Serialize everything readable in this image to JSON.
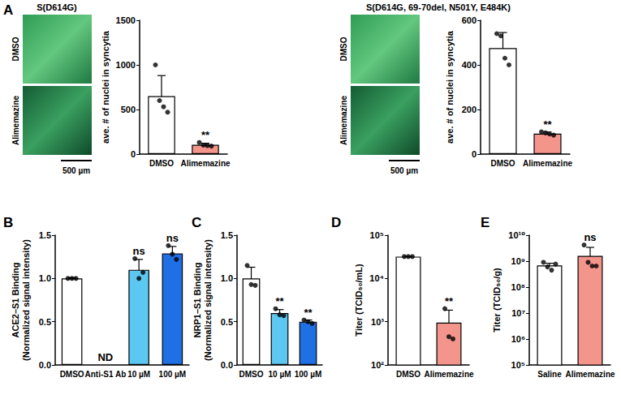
{
  "chart_data": [
    {
      "type": "bar",
      "label": "A",
      "title": "S(D614G)",
      "images": {
        "labels": [
          "DMSO",
          "Alimemazine"
        ],
        "scale_bar": "500 µm"
      },
      "ylabel": "ave. # of nuclei in syncytia",
      "categories": [
        "DMSO",
        "Alimemazine"
      ],
      "values": [
        650,
        104
      ],
      "errors": [
        230,
        18
      ],
      "points": [
        [
          1000,
          600,
          530,
          470
        ],
        [
          130,
          100,
          95,
          90
        ]
      ],
      "colors": [
        "#ffffff",
        "#f4958c"
      ],
      "annotations": [
        null,
        "**"
      ],
      "ylim": [
        0,
        1500
      ],
      "yticks": [
        0,
        500,
        1000,
        1500
      ],
      "grid": false
    },
    {
      "type": "bar",
      "title": "S(D614G, 69-70del, N501Y, E484K)",
      "images": {
        "labels": [
          "DMSO",
          "Alimemazine"
        ],
        "scale_bar": "500 µm"
      },
      "ylabel": "ave. # of nuclei in syncytia",
      "categories": [
        "DMSO",
        "Alimemazine"
      ],
      "values": [
        475,
        92
      ],
      "errors": [
        70,
        7
      ],
      "points": [
        [
          540,
          530,
          430,
          400
        ],
        [
          100,
          95,
          90,
          85
        ]
      ],
      "colors": [
        "#ffffff",
        "#f4958c"
      ],
      "annotations": [
        null,
        "**"
      ],
      "ylim": [
        0,
        600
      ],
      "yticks": [
        0,
        200,
        400,
        600
      ],
      "grid": false
    },
    {
      "type": "bar",
      "label": "B",
      "ylabel": "ACE2–S1 Binding\n(Normalized signal intensity)",
      "categories": [
        "DMSO",
        "Anti-S1 Ab",
        "10 µM",
        "100 µM"
      ],
      "values": [
        1.0,
        null,
        1.1,
        1.29
      ],
      "errors": [
        0.01,
        null,
        0.12,
        0.08
      ],
      "points": [
        [
          1.0,
          1.0,
          1.0
        ],
        [],
        [
          1.23,
          1.0,
          1.07
        ],
        [
          1.38,
          1.28,
          1.22
        ]
      ],
      "colors": [
        "#ffffff",
        "#ffffff",
        "#5cc8f2",
        "#1f6fe5"
      ],
      "annotations": [
        null,
        "ND",
        "ns",
        "ns"
      ],
      "ylim": [
        0,
        1.5
      ],
      "yticks": [
        {
          "value": 0,
          "label": "0.0"
        },
        {
          "value": 0.5,
          "label": "0.5"
        },
        {
          "value": 1,
          "label": "1.0"
        },
        {
          "value": 1.5,
          "label": "1.5"
        }
      ],
      "grid": false
    },
    {
      "type": "bar",
      "label": "C",
      "ylabel": "NRP1–S1 Binding\n(Normalized signal intensity)",
      "categories": [
        "DMSO",
        "10 µM",
        "100 µM"
      ],
      "values": [
        1.0,
        0.6,
        0.5
      ],
      "errors": [
        0.13,
        0.04,
        0.02
      ],
      "points": [
        [
          1.15,
          0.93,
          0.92
        ],
        [
          0.65,
          0.58,
          0.57
        ],
        [
          0.52,
          0.5,
          0.48
        ]
      ],
      "colors": [
        "#ffffff",
        "#5cc8f2",
        "#1f6fe5"
      ],
      "annotations": [
        null,
        "**",
        "**"
      ],
      "ylim": [
        0,
        1.5
      ],
      "yticks": [
        {
          "value": 0,
          "label": "0.0"
        },
        {
          "value": 0.5,
          "label": "0.5"
        },
        {
          "value": 1,
          "label": "1.0"
        },
        {
          "value": 1.5,
          "label": "1.5"
        }
      ],
      "grid": false
    },
    {
      "type": "bar",
      "label": "D",
      "log": "y",
      "ylabel": "Titer (TCID₅₀/mL)",
      "categories": [
        "DMSO",
        "Alimemazine"
      ],
      "values": [
        32000,
        950
      ],
      "errors": [
        0,
        900
      ],
      "points": [
        [
          32000,
          32000,
          32000
        ],
        [
          2000,
          450,
          400
        ]
      ],
      "colors": [
        "#ffffff",
        "#f4958c"
      ],
      "annotations": [
        null,
        "**"
      ],
      "ylim": [
        100,
        100000
      ],
      "yticks": [
        {
          "value": 100,
          "label": "10²"
        },
        {
          "value": 1000,
          "label": "10³"
        },
        {
          "value": 10000,
          "label": "10⁴"
        },
        {
          "value": 100000,
          "label": "10⁵"
        }
      ],
      "grid": false
    },
    {
      "type": "bar",
      "label": "E",
      "log": "y",
      "ylabel": "Titer (TCID₅₀/g)",
      "categories": [
        "Saline",
        "Alimemazine"
      ],
      "values": [
        680000000,
        1600000000
      ],
      "errors": [
        150000000,
        1800000000
      ],
      "points": [
        [
          900000000,
          600000000,
          450000000,
          770000000
        ],
        [
          4200000000,
          900000000,
          650000000,
          650000000
        ]
      ],
      "colors": [
        "#ffffff",
        "#f4958c"
      ],
      "annotations": [
        null,
        "ns"
      ],
      "ylim": [
        100000,
        10000000000
      ],
      "yticks": [
        {
          "value": 100000,
          "label": "10⁵"
        },
        {
          "value": 1000000,
          "label": "10⁶"
        },
        {
          "value": 10000000,
          "label": "10⁷"
        },
        {
          "value": 100000000,
          "label": "10⁸"
        },
        {
          "value": 1000000000,
          "label": "10⁹"
        },
        {
          "value": 10000000000,
          "label": "10¹⁰"
        }
      ],
      "grid": false
    }
  ]
}
